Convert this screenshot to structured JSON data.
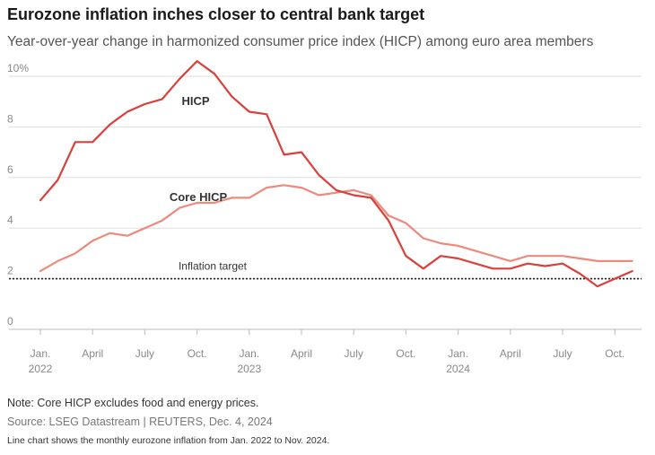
{
  "header": {
    "title": "Eurozone inflation inches closer to central bank target",
    "subtitle": "Year-over-year change in harmonized consumer price index (HICP) among euro area members"
  },
  "footer": {
    "note": "Note: Core HICP excludes food and energy prices.",
    "source": "Source: LSEG Datastream | REUTERS, Dec. 4, 2024",
    "description": "Line chart shows the monthly eurozone inflation from Jan. 2022 to Nov. 2024."
  },
  "colors": {
    "hicp": "#d9403a",
    "core": "#ec8a7c",
    "grid": "#dddddd",
    "axis": "#bbbbbb",
    "target": "#222222"
  },
  "chart_data": {
    "type": "line",
    "x": [
      "2022-01",
      "2022-02",
      "2022-03",
      "2022-04",
      "2022-05",
      "2022-06",
      "2022-07",
      "2022-08",
      "2022-09",
      "2022-10",
      "2022-11",
      "2022-12",
      "2023-01",
      "2023-02",
      "2023-03",
      "2023-04",
      "2023-05",
      "2023-06",
      "2023-07",
      "2023-08",
      "2023-09",
      "2023-10",
      "2023-11",
      "2023-12",
      "2024-01",
      "2024-02",
      "2024-03",
      "2024-04",
      "2024-05",
      "2024-06",
      "2024-07",
      "2024-08",
      "2024-09",
      "2024-10",
      "2024-11"
    ],
    "series": [
      {
        "name": "HICP",
        "values": [
          5.1,
          5.9,
          7.4,
          7.4,
          8.1,
          8.6,
          8.9,
          9.1,
          9.9,
          10.6,
          10.1,
          9.2,
          8.6,
          8.5,
          6.9,
          7.0,
          6.1,
          5.5,
          5.3,
          5.2,
          4.3,
          2.9,
          2.4,
          2.9,
          2.8,
          2.6,
          2.4,
          2.4,
          2.6,
          2.5,
          2.6,
          2.2,
          1.7,
          2.0,
          2.3
        ]
      },
      {
        "name": "Core HICP",
        "values": [
          2.3,
          2.7,
          3.0,
          3.5,
          3.8,
          3.7,
          4.0,
          4.3,
          4.8,
          5.0,
          5.0,
          5.2,
          5.2,
          5.6,
          5.7,
          5.6,
          5.3,
          5.4,
          5.5,
          5.3,
          4.5,
          4.2,
          3.6,
          3.4,
          3.3,
          3.1,
          2.9,
          2.7,
          2.9,
          2.9,
          2.9,
          2.8,
          2.7,
          2.7,
          2.7
        ]
      }
    ],
    "target": {
      "value": 2,
      "label": "Inflation target"
    },
    "ylim": [
      0,
      10
    ],
    "yticks": [
      {
        "value": 10,
        "label": "10%"
      },
      {
        "value": 8,
        "label": "8"
      },
      {
        "value": 6,
        "label": "6"
      },
      {
        "value": 4,
        "label": "4"
      },
      {
        "value": 2,
        "label": "2"
      },
      {
        "value": 0,
        "label": "0"
      }
    ],
    "xticks": [
      {
        "index": 0,
        "label": "Jan.",
        "sub": "2022"
      },
      {
        "index": 3,
        "label": "April"
      },
      {
        "index": 6,
        "label": "July"
      },
      {
        "index": 9,
        "label": "Oct."
      },
      {
        "index": 12,
        "label": "Jan.",
        "sub": "2023"
      },
      {
        "index": 15,
        "label": "April"
      },
      {
        "index": 18,
        "label": "July"
      },
      {
        "index": 21,
        "label": "Oct."
      },
      {
        "index": 24,
        "label": "Jan.",
        "sub": "2024"
      },
      {
        "index": 27,
        "label": "April"
      },
      {
        "index": 30,
        "label": "July"
      },
      {
        "index": 33,
        "label": "Oct."
      }
    ],
    "grid": true,
    "legend": "inline labels"
  }
}
